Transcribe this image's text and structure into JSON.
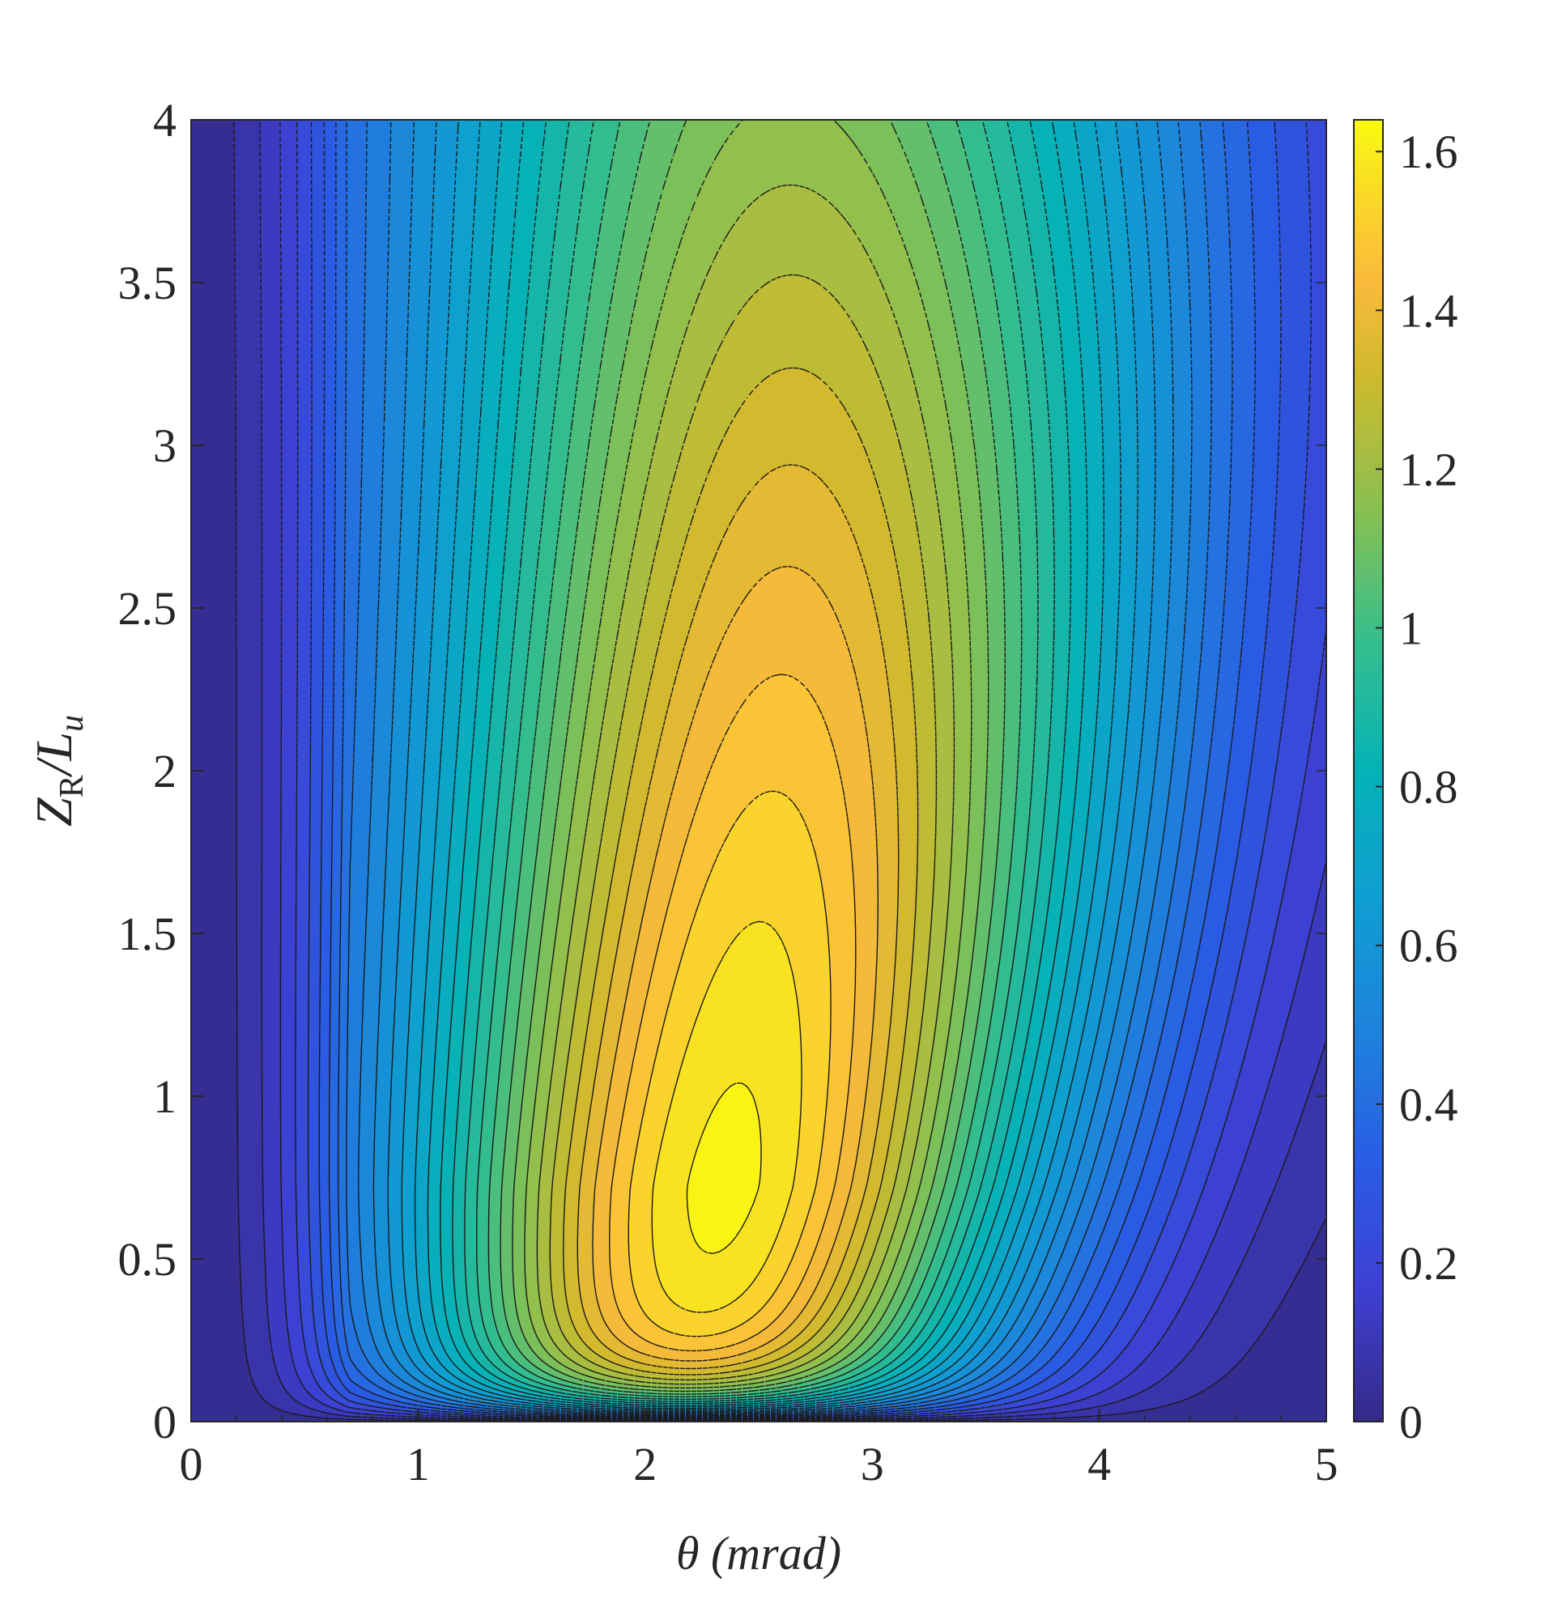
{
  "chart_data": {
    "type": "heatmap",
    "style": "filled contour plot with dashed black contour lines",
    "colormap": "parula",
    "title": "",
    "xlabel": "θ (mrad)",
    "ylabel": {
      "main": "Z",
      "sub": "R",
      "rest": "/L",
      "sub2": "u"
    },
    "xlim": [
      0,
      5
    ],
    "ylim": [
      0,
      4
    ],
    "clim": [
      0,
      1.64
    ],
    "xticks": [
      "0",
      "1",
      "2",
      "3",
      "4",
      "5"
    ],
    "yticks": [
      "0",
      "0.5",
      "1",
      "1.5",
      "2",
      "2.5",
      "3",
      "3.5",
      "4"
    ],
    "colorbar_ticks": [
      "0",
      "0.2",
      "0.4",
      "0.6",
      "0.8",
      "1",
      "1.2",
      "1.4",
      "1.6"
    ],
    "contour_levels_approx": [
      0.05,
      0.1,
      0.15,
      0.2,
      0.25,
      0.3,
      0.35,
      0.4,
      0.45,
      0.5,
      0.55,
      0.6,
      0.65,
      0.7,
      0.75,
      0.8,
      0.85,
      0.9,
      0.95,
      1.0,
      1.05,
      1.1,
      1.15,
      1.2,
      1.25,
      1.3,
      1.35,
      1.4,
      1.45,
      1.5,
      1.55,
      1.6
    ],
    "peak": {
      "theta": 2.1,
      "z": 0.7,
      "value": 1.62
    },
    "grid": false,
    "x_minor_ticks": true
  }
}
